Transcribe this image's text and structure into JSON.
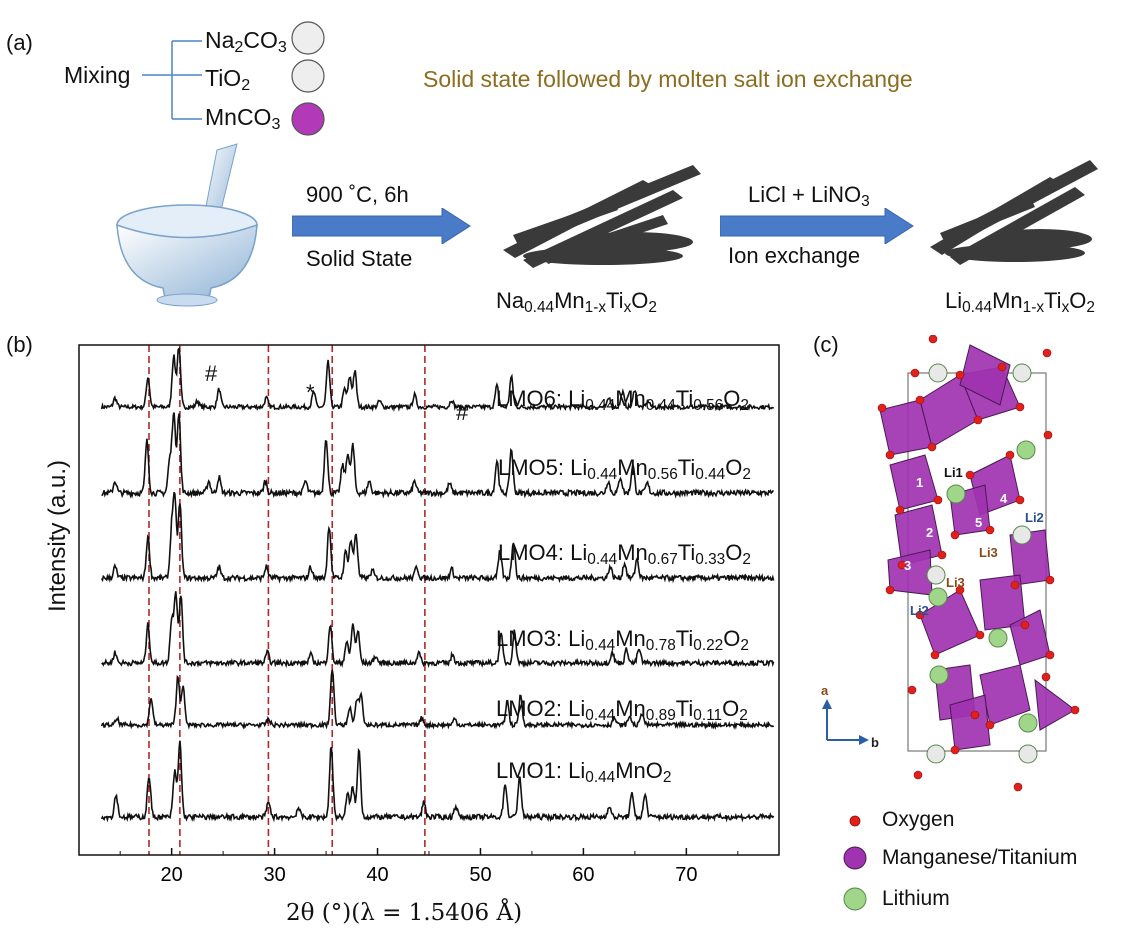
{
  "panel_a": {
    "label": "(a)",
    "mixing_label": "Mixing",
    "precursors": [
      {
        "main": "Na",
        "sub": "2",
        "tail": "CO",
        "sub2": "3",
        "color": "#eeeeee"
      },
      {
        "main": "TiO",
        "sub": "2",
        "tail": "",
        "sub2": "",
        "color": "#eeeeee"
      },
      {
        "main": "MnCO",
        "sub": "3",
        "tail": "",
        "sub2": "",
        "color": "#b23ab8"
      }
    ],
    "title": "Solid state followed by molten salt ion exchange",
    "title_color": "#8c6d1f",
    "step1_top": "900 ˚C, 6h",
    "step1_bottom": "Solid State",
    "step2_top_a": "LiCl + LiNO",
    "step2_top_sub": "3",
    "step2_bottom": "Ion exchange",
    "product1": {
      "a": "Na",
      "s1": "0.44",
      "b": "Mn",
      "s2": "1-x",
      "c": "Ti",
      "s3": "x",
      "d": "O",
      "s4": "2"
    },
    "product2": {
      "a": "Li",
      "s1": "0.44",
      "b": "Mn",
      "s2": "1-x",
      "c": "Ti",
      "s3": "x",
      "d": "O",
      "s4": "2"
    }
  },
  "panel_b": {
    "label": "(b)",
    "ylabel": "Intensity (a.u.)",
    "xlabel": "2θ (°)(λ = 1.5406 Å)",
    "markers": [
      "#",
      "*",
      "#"
    ]
  },
  "chart_data": {
    "type": "line",
    "xlim": [
      11,
      79
    ],
    "xticks": [
      20,
      30,
      40,
      50,
      60,
      70
    ],
    "yticks": [],
    "reference_lines_x": [
      17.8,
      20.8,
      29.4,
      35.6,
      44.6
    ],
    "reference_line_color": "#b0282a",
    "series": [
      {
        "name": "LMO6",
        "formula": {
          "a": "Li",
          "s1": "0.44",
          "b": "Mn",
          "s2": "0.44",
          "c": "Ti",
          "s3": "0.56",
          "d": "O",
          "s4": "2"
        },
        "peaks": [
          [
            14.5,
            0.15
          ],
          [
            17.7,
            0.5
          ],
          [
            20.2,
            0.85
          ],
          [
            20.7,
            1.0
          ],
          [
            22.5,
            0.1
          ],
          [
            24.6,
            0.3
          ],
          [
            29.2,
            0.15
          ],
          [
            33.8,
            0.25
          ],
          [
            35.2,
            0.75
          ],
          [
            36.8,
            0.3
          ],
          [
            37.3,
            0.5
          ],
          [
            37.8,
            0.6
          ],
          [
            40.2,
            0.1
          ],
          [
            43.6,
            0.2
          ],
          [
            47.2,
            0.12
          ],
          [
            51.6,
            0.35
          ],
          [
            53.0,
            0.5
          ],
          [
            62.5,
            0.15
          ],
          [
            63.8,
            0.25
          ],
          [
            65.0,
            0.3
          ],
          [
            66.3,
            0.1
          ]
        ]
      },
      {
        "name": "LMO5",
        "formula": {
          "a": "Li",
          "s1": "0.44",
          "b": "Mn",
          "s2": "0.56",
          "c": "Ti",
          "s3": "0.44",
          "d": "O",
          "s4": "2"
        },
        "peaks": [
          [
            14.5,
            0.15
          ],
          [
            17.6,
            0.65
          ],
          [
            19.8,
            0.4
          ],
          [
            20.2,
            1.0
          ],
          [
            20.7,
            1.0
          ],
          [
            23.6,
            0.15
          ],
          [
            24.6,
            0.2
          ],
          [
            29.1,
            0.15
          ],
          [
            33.0,
            0.15
          ],
          [
            35.0,
            0.7
          ],
          [
            36.6,
            0.35
          ],
          [
            37.1,
            0.5
          ],
          [
            37.6,
            0.6
          ],
          [
            39.2,
            0.15
          ],
          [
            43.6,
            0.15
          ],
          [
            47.0,
            0.12
          ],
          [
            51.6,
            0.4
          ],
          [
            53.0,
            0.55
          ],
          [
            62.4,
            0.15
          ],
          [
            63.6,
            0.2
          ],
          [
            64.8,
            0.35
          ],
          [
            66.2,
            0.12
          ]
        ]
      },
      {
        "name": "LMO4",
        "formula": {
          "a": "Li",
          "s1": "0.44",
          "b": "Mn",
          "s2": "0.67",
          "c": "Ti",
          "s3": "0.33",
          "d": "O",
          "s4": "2"
        },
        "peaks": [
          [
            14.5,
            0.15
          ],
          [
            17.7,
            0.55
          ],
          [
            20.0,
            0.6
          ],
          [
            20.3,
            1.0
          ],
          [
            20.8,
            1.0
          ],
          [
            24.6,
            0.15
          ],
          [
            29.2,
            0.15
          ],
          [
            33.5,
            0.15
          ],
          [
            35.3,
            0.7
          ],
          [
            36.9,
            0.35
          ],
          [
            37.4,
            0.5
          ],
          [
            37.9,
            0.6
          ],
          [
            39.5,
            0.1
          ],
          [
            43.8,
            0.15
          ],
          [
            47.2,
            0.12
          ],
          [
            51.9,
            0.35
          ],
          [
            53.2,
            0.5
          ],
          [
            62.6,
            0.15
          ],
          [
            64.0,
            0.2
          ],
          [
            65.2,
            0.25
          ]
        ]
      },
      {
        "name": "LMO3",
        "formula": {
          "a": "Li",
          "s1": "0.44",
          "b": "Mn",
          "s2": "0.78",
          "c": "Ti",
          "s3": "0.22",
          "d": "O",
          "s4": "2"
        },
        "peaks": [
          [
            14.5,
            0.15
          ],
          [
            17.7,
            0.55
          ],
          [
            20.0,
            0.6
          ],
          [
            20.4,
            1.0
          ],
          [
            20.9,
            0.95
          ],
          [
            29.3,
            0.15
          ],
          [
            33.5,
            0.12
          ],
          [
            35.4,
            0.55
          ],
          [
            37.0,
            0.3
          ],
          [
            37.6,
            0.55
          ],
          [
            38.1,
            0.45
          ],
          [
            39.8,
            0.1
          ],
          [
            44.0,
            0.15
          ],
          [
            47.3,
            0.12
          ],
          [
            52.0,
            0.4
          ],
          [
            53.3,
            0.45
          ],
          [
            62.8,
            0.15
          ],
          [
            64.2,
            0.2
          ],
          [
            65.4,
            0.2
          ]
        ]
      },
      {
        "name": "LMO2",
        "formula": {
          "a": "Li",
          "s1": "0.44",
          "b": "Mn",
          "s2": "0.89",
          "c": "Ti",
          "s3": "0.11",
          "d": "O",
          "s4": "2"
        },
        "peaks": [
          [
            14.7,
            0.1
          ],
          [
            18.0,
            0.45
          ],
          [
            20.6,
            0.8
          ],
          [
            21.1,
            0.65
          ],
          [
            29.4,
            0.1
          ],
          [
            35.6,
            0.95
          ],
          [
            37.3,
            0.3
          ],
          [
            38.0,
            0.4
          ],
          [
            38.4,
            0.5
          ],
          [
            44.3,
            0.12
          ],
          [
            47.5,
            0.1
          ],
          [
            52.6,
            0.4
          ],
          [
            53.9,
            0.5
          ],
          [
            63.0,
            0.12
          ],
          [
            64.5,
            0.15
          ],
          [
            65.7,
            0.2
          ]
        ]
      },
      {
        "name": "LMO1",
        "formula": {
          "a": "Li",
          "s1": "0.44",
          "b": "MnO",
          "s2": "2",
          "c": "",
          "s3": "",
          "d": "",
          "s4": ""
        },
        "peaks": [
          [
            14.6,
            0.3
          ],
          [
            17.8,
            0.55
          ],
          [
            20.3,
            0.6
          ],
          [
            20.8,
            1.0
          ],
          [
            29.4,
            0.2
          ],
          [
            32.3,
            0.12
          ],
          [
            35.5,
            0.95
          ],
          [
            37.1,
            0.3
          ],
          [
            37.6,
            0.4
          ],
          [
            38.2,
            0.9
          ],
          [
            44.5,
            0.2
          ],
          [
            47.6,
            0.15
          ],
          [
            52.4,
            0.45
          ],
          [
            53.8,
            0.55
          ],
          [
            62.5,
            0.15
          ],
          [
            64.7,
            0.3
          ],
          [
            66.0,
            0.3
          ]
        ]
      }
    ]
  },
  "panel_c": {
    "label": "(c)",
    "site_labels": [
      "Li1",
      "Li2",
      "Li3",
      "Li3",
      "Li2"
    ],
    "poly_numbers": [
      "1",
      "2",
      "3",
      "4",
      "5"
    ],
    "axis_a": "a",
    "axis_b": "b",
    "legend": [
      {
        "label": "Oxygen",
        "color": "#e0201b"
      },
      {
        "label": "Manganese/Titanium",
        "color": "#a033b0"
      },
      {
        "label": "Lithium",
        "color": "#8fd07a"
      }
    ]
  }
}
